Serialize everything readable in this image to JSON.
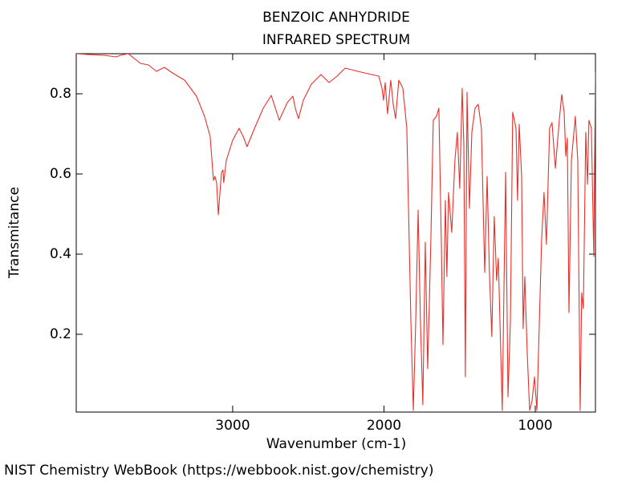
{
  "chart_data": {
    "type": "line",
    "title": "BENZOIC ANHYDRIDE",
    "subtitle": "INFRARED SPECTRUM",
    "x_label": "Wavenumber (cm-1)",
    "y_label": "Transmitance",
    "footer": "NIST Chemistry WebBook (https://webbook.nist.gov/chemistry)",
    "xlim": [
      4034,
      602
    ],
    "ylim": [
      0.006,
      0.9
    ],
    "xticks": [
      3000,
      2000,
      1000
    ],
    "yticks": [
      0.2,
      0.4,
      0.6,
      0.8
    ],
    "x": [
      4034,
      3955,
      3849,
      3769,
      3743,
      3690,
      3610,
      3557,
      3504,
      3451,
      3398,
      3318,
      3239,
      3186,
      3149,
      3127,
      3117,
      3106,
      3095,
      3074,
      3064,
      3059,
      3042,
      3000,
      2958,
      2931,
      2905,
      2851,
      2798,
      2745,
      2692,
      2639,
      2602,
      2586,
      2565,
      2533,
      2480,
      2416,
      2363,
      2310,
      2257,
      2151,
      2034,
      2013,
      2003,
      1992,
      1976,
      1955,
      1939,
      1923,
      1902,
      1875,
      1849,
      1822,
      1806,
      1790,
      1774,
      1759,
      1743,
      1727,
      1711,
      1690,
      1674,
      1653,
      1637,
      1621,
      1610,
      1594,
      1584,
      1573,
      1552,
      1531,
      1515,
      1499,
      1483,
      1472,
      1462,
      1451,
      1435,
      1419,
      1398,
      1377,
      1356,
      1334,
      1318,
      1303,
      1287,
      1271,
      1255,
      1244,
      1218,
      1196,
      1180,
      1164,
      1149,
      1127,
      1117,
      1106,
      1090,
      1080,
      1069,
      1053,
      1037,
      1021,
      1005,
      989,
      958,
      942,
      926,
      905,
      889,
      867,
      841,
      825,
      809,
      798,
      788,
      777,
      761,
      735,
      719,
      703,
      693,
      682,
      666,
      655,
      645,
      629,
      613,
      602
    ],
    "series": [
      {
        "name": "Transmitance",
        "color": "#e8302a",
        "values": [
          0.9,
          0.898,
          0.896,
          0.892,
          0.896,
          0.9,
          0.876,
          0.872,
          0.856,
          0.866,
          0.852,
          0.834,
          0.794,
          0.744,
          0.694,
          0.584,
          0.594,
          0.578,
          0.498,
          0.604,
          0.61,
          0.578,
          0.634,
          0.684,
          0.714,
          0.694,
          0.668,
          0.718,
          0.764,
          0.796,
          0.734,
          0.778,
          0.794,
          0.764,
          0.738,
          0.784,
          0.824,
          0.848,
          0.828,
          0.844,
          0.864,
          0.854,
          0.844,
          0.814,
          0.784,
          0.828,
          0.75,
          0.834,
          0.774,
          0.738,
          0.834,
          0.814,
          0.714,
          0.234,
          0.01,
          0.234,
          0.51,
          0.234,
          0.024,
          0.43,
          0.114,
          0.434,
          0.734,
          0.744,
          0.764,
          0.434,
          0.174,
          0.534,
          0.344,
          0.554,
          0.454,
          0.634,
          0.704,
          0.564,
          0.814,
          0.674,
          0.094,
          0.804,
          0.514,
          0.704,
          0.764,
          0.774,
          0.714,
          0.354,
          0.594,
          0.354,
          0.194,
          0.494,
          0.334,
          0.39,
          0.01,
          0.604,
          0.044,
          0.234,
          0.754,
          0.714,
          0.534,
          0.724,
          0.594,
          0.214,
          0.344,
          0.154,
          0.01,
          0.034,
          0.094,
          0.01,
          0.434,
          0.554,
          0.424,
          0.714,
          0.728,
          0.614,
          0.734,
          0.798,
          0.754,
          0.644,
          0.69,
          0.254,
          0.634,
          0.744,
          0.634,
          0.01,
          0.304,
          0.264,
          0.704,
          0.574,
          0.734,
          0.714,
          0.394,
          0.854
        ]
      }
    ]
  }
}
